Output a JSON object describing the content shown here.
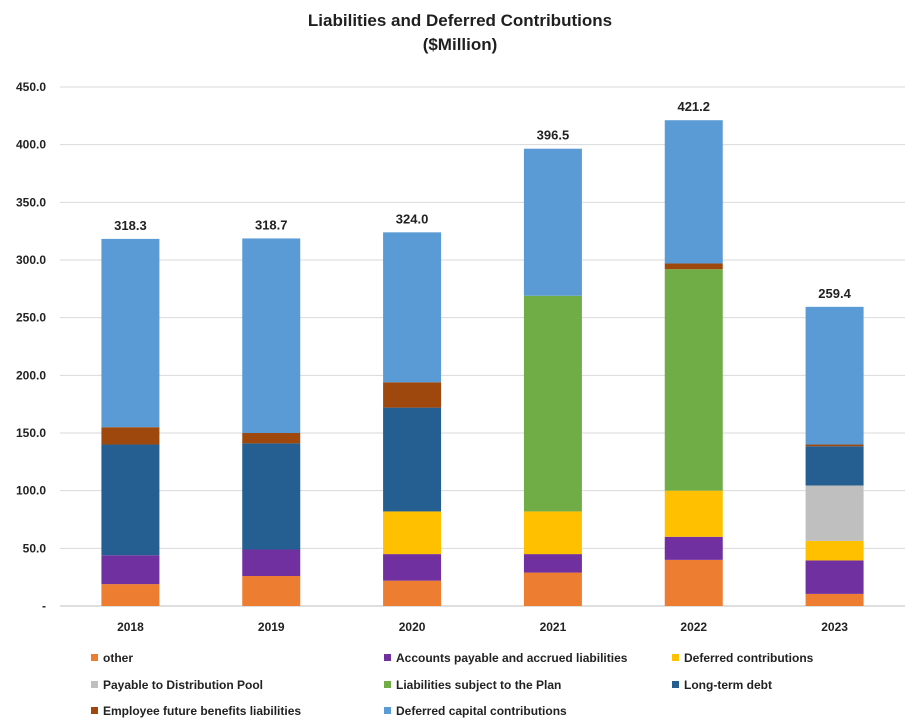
{
  "chart_data": {
    "type": "bar",
    "stacked": true,
    "title": "Liabilities and Deferred Contributions",
    "subtitle": "($Million)",
    "categories": [
      "2018",
      "2019",
      "2020",
      "2021",
      "2022",
      "2023"
    ],
    "ylim": [
      0,
      450
    ],
    "yticks": [
      0,
      50,
      100,
      150,
      200,
      250,
      300,
      350,
      400,
      450
    ],
    "ytick_labels": [
      "-",
      "50.0",
      "100.0",
      "150.0",
      "200.0",
      "250.0",
      "300.0",
      "350.0",
      "400.0",
      "450.0"
    ],
    "grid": true,
    "legend_position": "bottom",
    "series": [
      {
        "name": "other",
        "color": "#ED7D31",
        "values": [
          19.0,
          26.0,
          22.0,
          29.0,
          40.0,
          10.5
        ]
      },
      {
        "name": "Accounts payable and accrued liabilities",
        "color": "#7030A0",
        "values": [
          25.0,
          23.0,
          23.0,
          16.0,
          20.0,
          29.0
        ]
      },
      {
        "name": "Deferred contributions",
        "color": "#FFC000",
        "values": [
          0,
          0,
          37.0,
          37.0,
          40.0,
          17.0
        ]
      },
      {
        "name": "Payable to Distribution Pool",
        "color": "#BFBFBF",
        "values": [
          0,
          0,
          0,
          0,
          0,
          48.0
        ]
      },
      {
        "name": "Liabilities subject to the Plan",
        "color": "#70AD47",
        "values": [
          0,
          0,
          0,
          187.0,
          192.0,
          0
        ]
      },
      {
        "name": "Long-term debt",
        "color": "#255E91",
        "values": [
          96.0,
          92.0,
          90.0,
          0,
          0,
          34.0
        ]
      },
      {
        "name": "Employee future benefits liabilities",
        "color": "#9E480E",
        "values": [
          15.0,
          9.0,
          22.0,
          0,
          5.0,
          1.5
        ]
      },
      {
        "name": "Deferred capital contributions",
        "color": "#5B9BD5",
        "values": [
          163.3,
          168.7,
          130.0,
          127.5,
          124.2,
          119.4
        ]
      }
    ],
    "totals": [
      "318.3",
      "318.7",
      "324.0",
      "396.5",
      "421.2",
      "259.4"
    ]
  }
}
